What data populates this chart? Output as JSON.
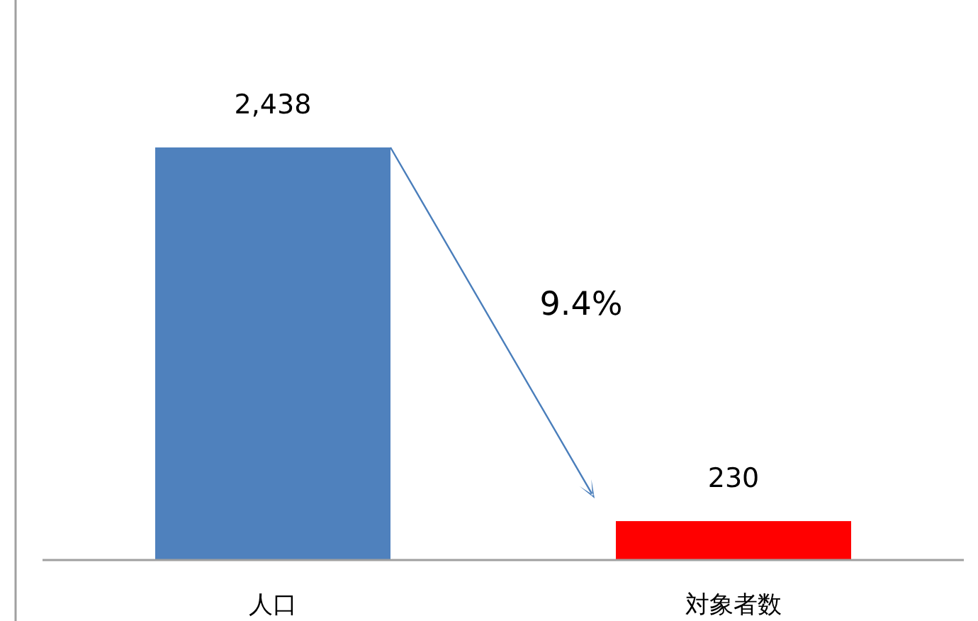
{
  "chart_data": {
    "type": "bar",
    "categories": [
      "人口",
      "対象者数"
    ],
    "values": [
      2438,
      230
    ],
    "colors": [
      "#4f81bd",
      "#ff0000"
    ],
    "value_labels": [
      "2,438",
      "230"
    ],
    "annotations": [
      "9.4%"
    ]
  }
}
